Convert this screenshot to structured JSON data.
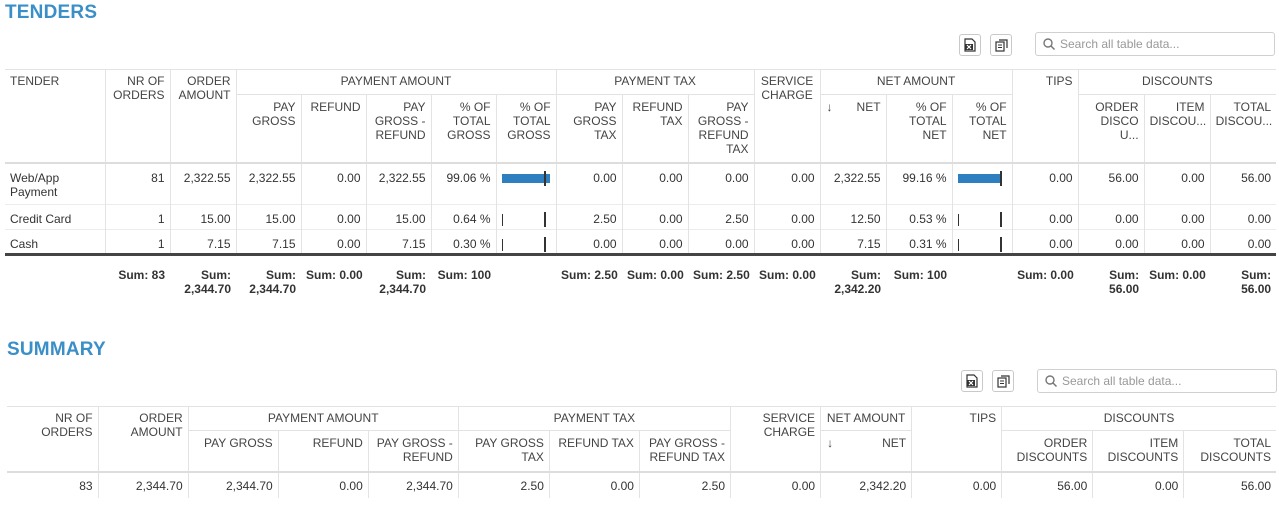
{
  "tenders": {
    "title": "TENDERS",
    "search_placeholder": "Search all table data...",
    "icons": {
      "export": "excel-export-icon",
      "columns": "column-chooser-icon"
    },
    "header": {
      "tender": "TENDER",
      "nr_orders": "NR OF ORDERS",
      "order_amount": "ORDER AMOUNT",
      "payment_amount": "PAYMENT AMOUNT",
      "pay_gross": "PAY GROSS",
      "refund": "REFUND",
      "pay_gross_refund": "PAY GROSS - REFUND",
      "pct_total_gross_a": "% OF TOTAL GROSS",
      "pct_total_gross_b": "% OF TOTAL GROSS",
      "payment_tax": "PAYMENT TAX",
      "pay_gross_tax": "PAY GROSS TAX",
      "refund_tax": "REFUND TAX",
      "pay_gross_refund_tax": "PAY GROSS - REFUND TAX",
      "service_charge": "SERVICE CHARGE",
      "net_amount": "NET AMOUNT",
      "sort_arrow": "↓",
      "net": "NET",
      "pct_total_net_a": "% OF TOTAL NET",
      "pct_total_net_b": "% OF TOTAL NET",
      "tips": "TIPS",
      "discounts": "DISCOUNTS",
      "order_discounts": "ORDER DISCOU...",
      "item_discounts": "ITEM DISCOU...",
      "total_discounts": "TOTAL DISCOU..."
    },
    "rows": [
      {
        "tender": "Web/App Payment",
        "nr": "81",
        "order": "2,322.55",
        "pay_gross": "2,322.55",
        "refund": "0.00",
        "pgr": "2,322.55",
        "pct_gross": "99.06 %",
        "gross_share": 0.9906,
        "pgt": "0.00",
        "rt": "0.00",
        "pgrt": "0.00",
        "sc": "0.00",
        "net": "2,322.55",
        "pct_net": "99.16 %",
        "net_share": 0.9916,
        "tips": "0.00",
        "od": "56.00",
        "id": "0.00",
        "td": "56.00"
      },
      {
        "tender": "Credit Card",
        "nr": "1",
        "order": "15.00",
        "pay_gross": "15.00",
        "refund": "0.00",
        "pgr": "15.00",
        "pct_gross": "0.64 %",
        "gross_share": 0.0064,
        "pgt": "2.50",
        "rt": "0.00",
        "pgrt": "2.50",
        "sc": "0.00",
        "net": "12.50",
        "pct_net": "0.53 %",
        "net_share": 0.0053,
        "tips": "0.00",
        "od": "0.00",
        "id": "0.00",
        "td": "0.00"
      },
      {
        "tender": "Cash",
        "nr": "1",
        "order": "7.15",
        "pay_gross": "7.15",
        "refund": "0.00",
        "pgr": "7.15",
        "pct_gross": "0.30 %",
        "gross_share": 0.003,
        "pgt": "0.00",
        "rt": "0.00",
        "pgrt": "0.00",
        "sc": "0.00",
        "net": "7.15",
        "pct_net": "0.31 %",
        "net_share": 0.0031,
        "tips": "0.00",
        "od": "0.00",
        "id": "0.00",
        "td": "0.00"
      }
    ],
    "sums": {
      "nr": "Sum: 83",
      "order": "Sum: 2,344.70",
      "pay_gross": "Sum: 2,344.70",
      "refund": "Sum: 0.00",
      "pgr": "Sum: 2,344.70",
      "pct_gross": "Sum: 100",
      "pgt": "Sum: 2.50",
      "rt": "Sum: 0.00",
      "pgrt": "Sum: 2.50",
      "sc": "Sum: 0.00",
      "net": "Sum: 2,342.20",
      "pct_net": "Sum: 100",
      "tips": "Sum: 0.00",
      "od": "Sum: 56.00",
      "id": "Sum: 0.00",
      "td": "Sum: 56.00"
    }
  },
  "summary": {
    "title": "SUMMARY",
    "search_placeholder": "Search all table data...",
    "header": {
      "nr_orders": "NR OF ORDERS",
      "order_amount": "ORDER AMOUNT",
      "payment_amount": "PAYMENT AMOUNT",
      "pay_gross": "PAY GROSS",
      "refund": "REFUND",
      "pay_gross_refund": "PAY GROSS - REFUND",
      "payment_tax": "PAYMENT TAX",
      "pay_gross_tax": "PAY GROSS TAX",
      "refund_tax": "REFUND TAX",
      "pay_gross_refund_tax": "PAY GROSS - REFUND TAX",
      "service_charge": "SERVICE CHARGE",
      "net_amount": "NET AMOUNT",
      "sort_arrow": "↓",
      "net": "NET",
      "tips": "TIPS",
      "discounts": "DISCOUNTS",
      "order_discounts": "ORDER DISCOUNTS",
      "item_discounts": "ITEM DISCOUNTS",
      "total_discounts": "TOTAL DISCOUNTS"
    },
    "row": {
      "nr": "83",
      "order": "2,344.70",
      "pay_gross": "2,344.70",
      "refund": "0.00",
      "pgr": "2,344.70",
      "pgt": "2.50",
      "rt": "0.00",
      "pgrt": "2.50",
      "sc": "0.00",
      "net": "2,342.20",
      "tips": "0.00",
      "od": "56.00",
      "id": "0.00",
      "td": "56.00"
    }
  },
  "colors": {
    "accent": "#3a8fc8",
    "bar": "#2e7fbf"
  }
}
